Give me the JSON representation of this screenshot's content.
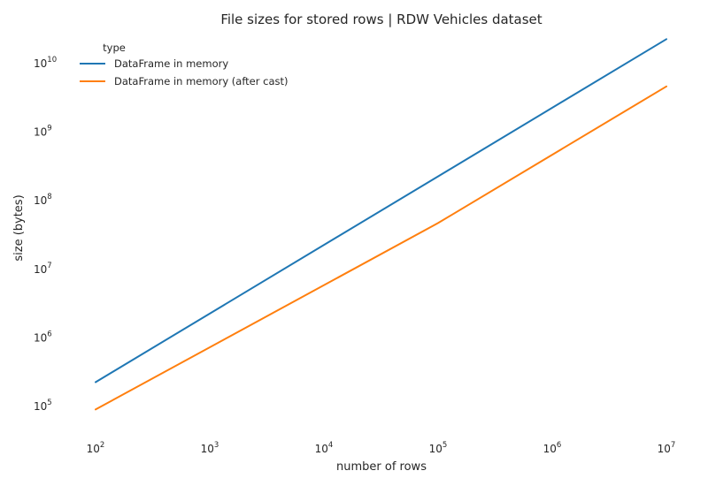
{
  "chart_data": {
    "type": "line",
    "title": "File sizes for stored rows |  RDW Vehicles dataset",
    "xlabel": "number of rows",
    "ylabel": "size (bytes)",
    "xscale": "log",
    "yscale": "log",
    "xlim": [
      100,
      10000000
    ],
    "ylim": [
      40000,
      25000000000
    ],
    "grid": false,
    "legend": {
      "title": "type",
      "placement": "top-left"
    },
    "x_ticks": [
      {
        "base": "10",
        "exp": "2",
        "value": 100
      },
      {
        "base": "10",
        "exp": "3",
        "value": 1000
      },
      {
        "base": "10",
        "exp": "4",
        "value": 10000
      },
      {
        "base": "10",
        "exp": "5",
        "value": 100000
      },
      {
        "base": "10",
        "exp": "6",
        "value": 1000000
      },
      {
        "base": "10",
        "exp": "7",
        "value": 10000000
      }
    ],
    "y_ticks": [
      {
        "base": "10",
        "exp": "5",
        "value": 100000
      },
      {
        "base": "10",
        "exp": "6",
        "value": 1000000
      },
      {
        "base": "10",
        "exp": "7",
        "value": 10000000
      },
      {
        "base": "10",
        "exp": "8",
        "value": 100000000
      },
      {
        "base": "10",
        "exp": "9",
        "value": 1000000000
      },
      {
        "base": "10",
        "exp": "10",
        "value": 10000000000
      }
    ],
    "series": [
      {
        "name": "DataFrame in memory",
        "color": "#1f77b4",
        "x": [
          100,
          100000,
          10000000
        ],
        "y": [
          220000,
          220000000,
          22000000000
        ]
      },
      {
        "name": "DataFrame in memory (after cast)",
        "color": "#ff7f0e",
        "x": [
          100,
          100000,
          10000000
        ],
        "y": [
          88000,
          46000000,
          4500000000
        ]
      }
    ]
  }
}
